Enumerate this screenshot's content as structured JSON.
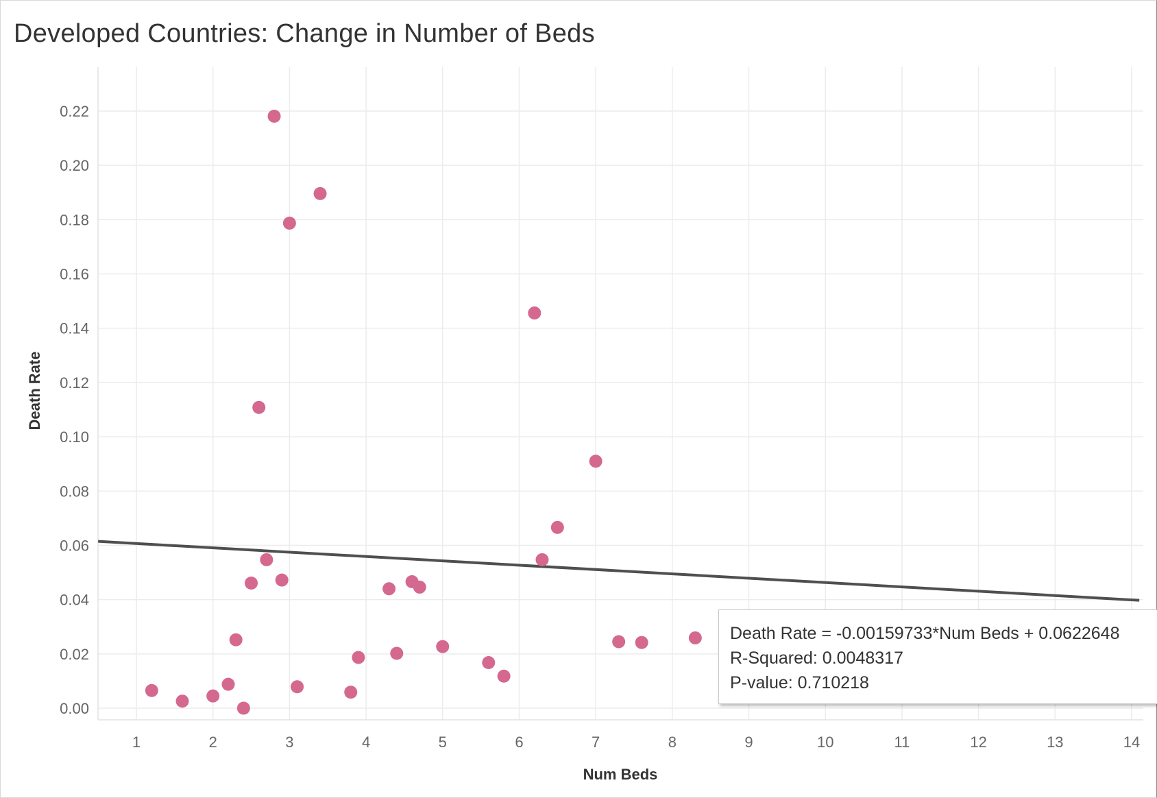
{
  "title": "Developed Countries: Change in Number of Beds",
  "tooltip": {
    "equation": "Death Rate = -0.00159733*Num Beds + 0.0622648",
    "r_squared": "R-Squared: 0.0048317",
    "p_value": "P-value: 0.710218"
  },
  "colors": {
    "point": "#d4688f",
    "trend": "#4f4f4f",
    "grid": "#ececec"
  },
  "chart_data": {
    "type": "scatter",
    "title": "Developed Countries: Change in Number of Beds",
    "xlabel": "Num Beds",
    "ylabel": "Death Rate",
    "xlim": [
      0.5,
      14.1
    ],
    "ylim": [
      -0.004,
      0.236
    ],
    "xticks": [
      1,
      2,
      3,
      4,
      5,
      6,
      7,
      8,
      9,
      10,
      11,
      12,
      13,
      14
    ],
    "yticks": [
      0.0,
      0.02,
      0.04,
      0.06,
      0.08,
      0.1,
      0.12,
      0.14,
      0.16,
      0.18,
      0.2,
      0.22
    ],
    "ytick_labels": [
      "0.00",
      "0.02",
      "0.04",
      "0.06",
      "0.08",
      "0.10",
      "0.12",
      "0.14",
      "0.16",
      "0.18",
      "0.20",
      "0.22"
    ],
    "grid": true,
    "points": [
      {
        "x": 1.2,
        "y": 0.0065
      },
      {
        "x": 1.6,
        "y": 0.0026
      },
      {
        "x": 2.0,
        "y": 0.0045
      },
      {
        "x": 2.2,
        "y": 0.0088
      },
      {
        "x": 2.3,
        "y": 0.0252
      },
      {
        "x": 2.4,
        "y": 0.0
      },
      {
        "x": 2.5,
        "y": 0.0461
      },
      {
        "x": 2.6,
        "y": 0.1108
      },
      {
        "x": 2.7,
        "y": 0.0547
      },
      {
        "x": 2.8,
        "y": 0.2181
      },
      {
        "x": 2.9,
        "y": 0.0472
      },
      {
        "x": 3.0,
        "y": 0.1787
      },
      {
        "x": 3.1,
        "y": 0.0079
      },
      {
        "x": 3.4,
        "y": 0.1896
      },
      {
        "x": 3.8,
        "y": 0.0059
      },
      {
        "x": 3.9,
        "y": 0.0187
      },
      {
        "x": 4.3,
        "y": 0.044
      },
      {
        "x": 4.4,
        "y": 0.0202
      },
      {
        "x": 4.6,
        "y": 0.0466
      },
      {
        "x": 4.7,
        "y": 0.0446
      },
      {
        "x": 5.0,
        "y": 0.0227
      },
      {
        "x": 5.6,
        "y": 0.0168
      },
      {
        "x": 5.8,
        "y": 0.0118
      },
      {
        "x": 6.2,
        "y": 0.1456
      },
      {
        "x": 6.3,
        "y": 0.0547
      },
      {
        "x": 6.5,
        "y": 0.0666
      },
      {
        "x": 7.0,
        "y": 0.091
      },
      {
        "x": 7.3,
        "y": 0.0245
      },
      {
        "x": 7.6,
        "y": 0.0242
      },
      {
        "x": 8.3,
        "y": 0.0259
      }
    ],
    "trend_line": {
      "slope": -0.00159733,
      "intercept": 0.0622648
    }
  }
}
